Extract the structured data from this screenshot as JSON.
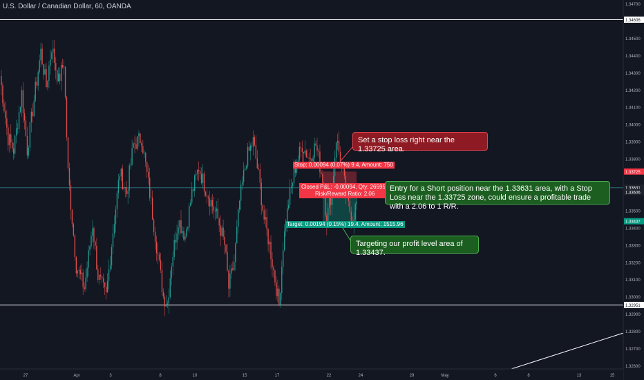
{
  "header": {
    "title": "U.S. Dollar / Canadian Dollar, 60, OANDA"
  },
  "colors": {
    "background": "#131722",
    "up": "#26a69a",
    "down": "#ef5350",
    "stop": "#f23645",
    "target": "#089981",
    "axis_text": "#b2b5be"
  },
  "chart_data": {
    "type": "candlestick",
    "ylim": [
      1.3258,
      1.3472
    ],
    "x_ticks": [
      "27",
      "Apr",
      "3",
      "8",
      "10",
      "15",
      "17",
      "22",
      "24",
      "29",
      "May",
      "6",
      "8",
      "13",
      "15"
    ],
    "y_ticks": [
      "1.34700",
      "1.34500",
      "1.34400",
      "1.34300",
      "1.34200",
      "1.34100",
      "1.34000",
      "1.33900",
      "1.33800",
      "1.33500",
      "1.33400",
      "1.33300",
      "1.33200",
      "1.33100",
      "1.33000",
      "1.32900",
      "1.32800",
      "1.32700",
      "1.32600"
    ],
    "horizontal_lines": [
      {
        "label": "1.34606",
        "value": 1.34606
      },
      {
        "label": "1.32951",
        "value": 1.32951
      }
    ],
    "price_labels": [
      {
        "label": "1.33725",
        "value": 1.33725,
        "kind": "stop"
      },
      {
        "label": "1.33631",
        "value": 1.33631,
        "kind": "entry"
      },
      {
        "label": "1.33606",
        "value": 1.33606,
        "kind": "current"
      },
      {
        "label": "1.33437",
        "value": 1.33437,
        "kind": "target"
      }
    ],
    "position": {
      "stop_text": "Stop: 0.00094 (0.07%) 9.4, Amount: 750",
      "pnl_text": "Closed P&L: -0.00094, Qty: 265957",
      "rr_text": "Risk/Reward Ratio: 2.06",
      "target_text": "Target: 0.00194 (0.15%) 19.4, Amount: 1515.96"
    },
    "anchors": [
      {
        "t": 0,
        "p": 1.3428
      },
      {
        "t": 6,
        "p": 1.3392
      },
      {
        "t": 10,
        "p": 1.3385
      },
      {
        "t": 16,
        "p": 1.3418
      },
      {
        "t": 20,
        "p": 1.3385
      },
      {
        "t": 26,
        "p": 1.342
      },
      {
        "t": 30,
        "p": 1.3442
      },
      {
        "t": 34,
        "p": 1.3422
      },
      {
        "t": 38,
        "p": 1.3445
      },
      {
        "t": 43,
        "p": 1.3425
      },
      {
        "t": 47,
        "p": 1.3436
      },
      {
        "t": 50,
        "p": 1.3372
      },
      {
        "t": 56,
        "p": 1.3318
      },
      {
        "t": 62,
        "p": 1.3305
      },
      {
        "t": 68,
        "p": 1.3342
      },
      {
        "t": 72,
        "p": 1.3312
      },
      {
        "t": 78,
        "p": 1.33
      },
      {
        "t": 83,
        "p": 1.3338
      },
      {
        "t": 88,
        "p": 1.3372
      },
      {
        "t": 93,
        "p": 1.336
      },
      {
        "t": 98,
        "p": 1.3388
      },
      {
        "t": 104,
        "p": 1.3392
      },
      {
        "t": 110,
        "p": 1.336
      },
      {
        "t": 115,
        "p": 1.333
      },
      {
        "t": 120,
        "p": 1.33
      },
      {
        "t": 123,
        "p": 1.3296
      },
      {
        "t": 126,
        "p": 1.332
      },
      {
        "t": 131,
        "p": 1.3345
      },
      {
        "t": 136,
        "p": 1.3335
      },
      {
        "t": 141,
        "p": 1.336
      },
      {
        "t": 146,
        "p": 1.3375
      },
      {
        "t": 150,
        "p": 1.3365
      },
      {
        "t": 155,
        "p": 1.3355
      },
      {
        "t": 160,
        "p": 1.3345
      },
      {
        "t": 165,
        "p": 1.333
      },
      {
        "t": 168,
        "p": 1.3305
      },
      {
        "t": 172,
        "p": 1.332
      },
      {
        "t": 176,
        "p": 1.3355
      },
      {
        "t": 181,
        "p": 1.338
      },
      {
        "t": 186,
        "p": 1.339
      },
      {
        "t": 190,
        "p": 1.337
      },
      {
        "t": 194,
        "p": 1.3345
      },
      {
        "t": 198,
        "p": 1.333
      },
      {
        "t": 202,
        "p": 1.331
      },
      {
        "t": 205,
        "p": 1.3295
      },
      {
        "t": 208,
        "p": 1.333
      },
      {
        "t": 212,
        "p": 1.3355
      },
      {
        "t": 217,
        "p": 1.3375
      },
      {
        "t": 222,
        "p": 1.3388
      },
      {
        "t": 227,
        "p": 1.338
      },
      {
        "t": 232,
        "p": 1.3388
      },
      {
        "t": 236,
        "p": 1.3372
      },
      {
        "t": 240,
        "p": 1.3345
      },
      {
        "t": 244,
        "p": 1.3362
      },
      {
        "t": 247,
        "p": 1.3392
      },
      {
        "t": 251,
        "p": 1.3376
      },
      {
        "t": 255,
        "p": 1.3355
      },
      {
        "t": 259,
        "p": 1.3345
      },
      {
        "t": 262,
        "p": 1.3355
      }
    ]
  },
  "annotations": {
    "stop_note": "Set a stop loss right near the 1.33725 area.",
    "entry_note": "Entry for a Short position near the 1.33631 area, with a Stop Loss near the 1.33725 zone, could ensure a profitable trade with a 2.06 to 1 R/R.",
    "target_note": "Targeting our profit level area of 1.33437."
  }
}
